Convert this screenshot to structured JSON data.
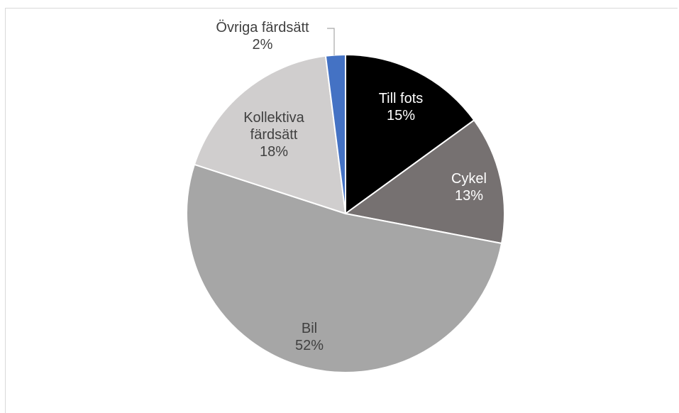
{
  "chart_data": {
    "type": "pie",
    "slices": [
      {
        "label_lines": [
          "Till fots"
        ],
        "percent_text": "15%",
        "value": 15,
        "color": "#000000",
        "label_color": "#ffffff"
      },
      {
        "label_lines": [
          "Cykel"
        ],
        "percent_text": "13%",
        "value": 13,
        "color": "#767171",
        "label_color": "#ffffff"
      },
      {
        "label_lines": [
          "Bil"
        ],
        "percent_text": "52%",
        "value": 52,
        "color": "#a6a6a6",
        "label_color": "#404040"
      },
      {
        "label_lines": [
          "Kollektiva",
          "färdsätt"
        ],
        "percent_text": "18%",
        "value": 18,
        "color": "#d0cece",
        "label_color": "#404040"
      },
      {
        "label_lines": [
          "Övriga färdsätt"
        ],
        "percent_text": "2%",
        "value": 2,
        "color": "#4472c4",
        "label_color": "#404040"
      }
    ],
    "start": "12 o'clock",
    "direction": "clockwise",
    "legend": "none",
    "labels": "data labels on slices; Övriga färdsätt outside with leader line"
  }
}
